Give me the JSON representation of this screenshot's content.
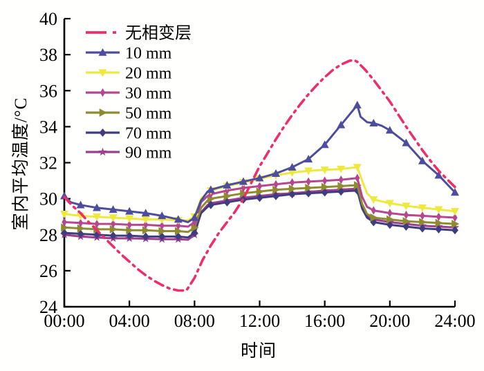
{
  "figure": {
    "kind": "scientific line chart",
    "background": "#ffffff",
    "axis_color": "#000000"
  },
  "chart_data": {
    "type": "line",
    "title": "",
    "xlabel": "时间",
    "ylabel": "室内平均温度/°C",
    "xlim": [
      0,
      24
    ],
    "ylim": [
      24,
      40
    ],
    "grid": false,
    "legend_position": "top-left",
    "x_ticks": [
      {
        "value": 0,
        "label": "00:00"
      },
      {
        "value": 4,
        "label": "04:00"
      },
      {
        "value": 8,
        "label": "08:00"
      },
      {
        "value": 12,
        "label": "12:00"
      },
      {
        "value": 16,
        "label": "16:00"
      },
      {
        "value": 20,
        "label": "20:00"
      },
      {
        "value": 24,
        "label": "24:00"
      }
    ],
    "y_ticks": [
      24,
      26,
      28,
      30,
      32,
      34,
      36,
      38,
      40
    ],
    "series": [
      {
        "label": "无相变层",
        "color": "#ED2E6B",
        "line_style": "dash-dot",
        "marker": "none",
        "points": [
          [
            0,
            30.1
          ],
          [
            0.5,
            29.6
          ],
          [
            1,
            29.2
          ],
          [
            1.5,
            28.7
          ],
          [
            2,
            28.25
          ],
          [
            2.5,
            27.8
          ],
          [
            3,
            27.35
          ],
          [
            3.5,
            26.9
          ],
          [
            4,
            26.5
          ],
          [
            4.5,
            26.1
          ],
          [
            5,
            25.75
          ],
          [
            5.5,
            25.45
          ],
          [
            6,
            25.2
          ],
          [
            6.5,
            25.0
          ],
          [
            7,
            24.9
          ],
          [
            7.5,
            24.9
          ],
          [
            8,
            25.6
          ],
          [
            8.5,
            26.6
          ],
          [
            9,
            27.4
          ],
          [
            9.5,
            28.1
          ],
          [
            10,
            28.7
          ],
          [
            10.5,
            29.3
          ],
          [
            11,
            30.0
          ],
          [
            11.5,
            30.9
          ],
          [
            12,
            31.8
          ],
          [
            12.5,
            32.55
          ],
          [
            13,
            33.3
          ],
          [
            13.5,
            34.0
          ],
          [
            14,
            34.65
          ],
          [
            14.5,
            35.25
          ],
          [
            15,
            35.8
          ],
          [
            15.5,
            36.3
          ],
          [
            16,
            36.75
          ],
          [
            16.5,
            37.15
          ],
          [
            17,
            37.45
          ],
          [
            17.5,
            37.65
          ],
          [
            17.8,
            37.7
          ],
          [
            18,
            37.6
          ],
          [
            18.5,
            37.15
          ],
          [
            19,
            36.6
          ],
          [
            19.5,
            36.0
          ],
          [
            20,
            35.4
          ],
          [
            20.5,
            34.7
          ],
          [
            21,
            34.0
          ],
          [
            21.5,
            33.35
          ],
          [
            22,
            32.7
          ],
          [
            22.5,
            32.1
          ],
          [
            23,
            31.55
          ],
          [
            23.5,
            31.1
          ],
          [
            24,
            30.65
          ]
        ]
      },
      {
        "label": "10 mm",
        "color": "#4D4C9D",
        "line_style": "solid",
        "marker": "triangle-up",
        "points": [
          [
            0,
            30.15
          ],
          [
            0.4,
            29.8
          ],
          [
            1,
            29.65
          ],
          [
            2,
            29.5
          ],
          [
            3,
            29.4
          ],
          [
            4,
            29.3
          ],
          [
            5,
            29.2
          ],
          [
            6,
            29.05
          ],
          [
            7,
            28.85
          ],
          [
            7.6,
            28.7
          ],
          [
            8,
            28.95
          ],
          [
            8.4,
            29.9
          ],
          [
            8.8,
            30.4
          ],
          [
            9,
            30.5
          ],
          [
            10,
            30.75
          ],
          [
            11,
            30.95
          ],
          [
            12,
            31.15
          ],
          [
            13,
            31.4
          ],
          [
            14,
            31.75
          ],
          [
            15,
            32.2
          ],
          [
            16,
            33.0
          ],
          [
            17,
            34.1
          ],
          [
            17.5,
            34.65
          ],
          [
            18,
            35.2
          ],
          [
            18.2,
            34.55
          ],
          [
            18.6,
            34.25
          ],
          [
            19,
            34.2
          ],
          [
            19.5,
            34.05
          ],
          [
            20,
            33.8
          ],
          [
            21,
            33.1
          ],
          [
            22,
            32.1
          ],
          [
            23,
            31.3
          ],
          [
            24,
            30.35
          ]
        ]
      },
      {
        "label": "20 mm",
        "color": "#EDE93F",
        "line_style": "solid",
        "marker": "triangle-down",
        "points": [
          [
            0,
            29.15
          ],
          [
            1,
            29.05
          ],
          [
            2,
            29.0
          ],
          [
            3,
            28.95
          ],
          [
            4,
            28.9
          ],
          [
            5,
            28.85
          ],
          [
            6,
            28.85
          ],
          [
            7,
            28.8
          ],
          [
            7.6,
            28.8
          ],
          [
            8,
            29.0
          ],
          [
            8.4,
            30.0
          ],
          [
            8.8,
            30.35
          ],
          [
            9,
            30.45
          ],
          [
            10,
            30.7
          ],
          [
            11,
            30.9
          ],
          [
            12,
            31.1
          ],
          [
            13,
            31.3
          ],
          [
            14,
            31.45
          ],
          [
            15,
            31.55
          ],
          [
            16,
            31.6
          ],
          [
            17,
            31.65
          ],
          [
            17.5,
            31.7
          ],
          [
            18,
            31.75
          ],
          [
            18.3,
            31.0
          ],
          [
            18.6,
            30.3
          ],
          [
            19,
            29.95
          ],
          [
            20,
            29.75
          ],
          [
            21,
            29.6
          ],
          [
            22,
            29.5
          ],
          [
            23,
            29.4
          ],
          [
            24,
            29.3
          ]
        ]
      },
      {
        "label": "30 mm",
        "color": "#B4478F",
        "line_style": "solid",
        "marker": "diamond-thin",
        "points": [
          [
            0,
            28.7
          ],
          [
            1,
            28.65
          ],
          [
            2,
            28.6
          ],
          [
            3,
            28.6
          ],
          [
            4,
            28.55
          ],
          [
            5,
            28.55
          ],
          [
            6,
            28.5
          ],
          [
            7,
            28.5
          ],
          [
            7.6,
            28.45
          ],
          [
            8,
            28.7
          ],
          [
            8.4,
            29.8
          ],
          [
            8.8,
            30.15
          ],
          [
            9,
            30.25
          ],
          [
            10,
            30.45
          ],
          [
            11,
            30.6
          ],
          [
            12,
            30.7
          ],
          [
            13,
            30.8
          ],
          [
            14,
            30.9
          ],
          [
            15,
            30.95
          ],
          [
            16,
            31.0
          ],
          [
            17,
            31.05
          ],
          [
            17.5,
            31.1
          ],
          [
            18,
            31.15
          ],
          [
            18.3,
            30.1
          ],
          [
            18.6,
            29.55
          ],
          [
            19,
            29.35
          ],
          [
            20,
            29.2
          ],
          [
            21,
            29.1
          ],
          [
            22,
            29.05
          ],
          [
            23,
            29.0
          ],
          [
            24,
            28.95
          ]
        ]
      },
      {
        "label": "50 mm",
        "color": "#8F8C2F",
        "line_style": "solid",
        "marker": "triangle-right",
        "points": [
          [
            0,
            28.4
          ],
          [
            1,
            28.35
          ],
          [
            2,
            28.3
          ],
          [
            3,
            28.3
          ],
          [
            4,
            28.25
          ],
          [
            5,
            28.25
          ],
          [
            6,
            28.2
          ],
          [
            7,
            28.2
          ],
          [
            7.6,
            28.15
          ],
          [
            8,
            28.4
          ],
          [
            8.4,
            29.5
          ],
          [
            8.8,
            29.9
          ],
          [
            9,
            30.0
          ],
          [
            10,
            30.15
          ],
          [
            11,
            30.3
          ],
          [
            12,
            30.4
          ],
          [
            13,
            30.5
          ],
          [
            14,
            30.55
          ],
          [
            15,
            30.6
          ],
          [
            16,
            30.65
          ],
          [
            17,
            30.7
          ],
          [
            17.5,
            30.73
          ],
          [
            18,
            30.75
          ],
          [
            18.3,
            29.7
          ],
          [
            18.6,
            29.15
          ],
          [
            19,
            28.95
          ],
          [
            20,
            28.85
          ],
          [
            21,
            28.75
          ],
          [
            22,
            28.7
          ],
          [
            23,
            28.65
          ],
          [
            24,
            28.6
          ]
        ]
      },
      {
        "label": "70 mm",
        "color": "#3F3D80",
        "line_style": "solid",
        "marker": "diamond",
        "points": [
          [
            0,
            28.1
          ],
          [
            1,
            28.05
          ],
          [
            2,
            28.0
          ],
          [
            3,
            27.95
          ],
          [
            4,
            27.95
          ],
          [
            5,
            27.9
          ],
          [
            6,
            27.9
          ],
          [
            7,
            27.9
          ],
          [
            7.6,
            27.85
          ],
          [
            8,
            28.1
          ],
          [
            8.4,
            29.2
          ],
          [
            8.8,
            29.55
          ],
          [
            9,
            29.65
          ],
          [
            10,
            29.8
          ],
          [
            11,
            29.95
          ],
          [
            12,
            30.05
          ],
          [
            13,
            30.15
          ],
          [
            14,
            30.25
          ],
          [
            15,
            30.3
          ],
          [
            16,
            30.35
          ],
          [
            17,
            30.4
          ],
          [
            17.5,
            30.43
          ],
          [
            18,
            30.45
          ],
          [
            18.3,
            29.45
          ],
          [
            18.6,
            28.95
          ],
          [
            19,
            28.7
          ],
          [
            20,
            28.55
          ],
          [
            21,
            28.45
          ],
          [
            22,
            28.35
          ],
          [
            23,
            28.3
          ],
          [
            24,
            28.25
          ]
        ]
      },
      {
        "label": "90 mm",
        "color": "#9C3F8E",
        "line_style": "solid",
        "marker": "star",
        "points": [
          [
            0,
            28.0
          ],
          [
            1,
            27.9
          ],
          [
            2,
            27.85
          ],
          [
            3,
            27.8
          ],
          [
            4,
            27.8
          ],
          [
            5,
            27.78
          ],
          [
            6,
            27.75
          ],
          [
            7,
            27.75
          ],
          [
            7.6,
            27.72
          ],
          [
            8,
            28.0
          ],
          [
            8.4,
            29.25
          ],
          [
            8.8,
            29.65
          ],
          [
            9,
            29.75
          ],
          [
            10,
            29.9
          ],
          [
            11,
            30.05
          ],
          [
            12,
            30.15
          ],
          [
            13,
            30.25
          ],
          [
            14,
            30.3
          ],
          [
            15,
            30.38
          ],
          [
            16,
            30.45
          ],
          [
            17,
            30.5
          ],
          [
            17.5,
            30.53
          ],
          [
            18,
            30.55
          ],
          [
            18.3,
            29.55
          ],
          [
            18.6,
            29.05
          ],
          [
            19,
            28.85
          ],
          [
            20,
            28.7
          ],
          [
            21,
            28.6
          ],
          [
            22,
            28.5
          ],
          [
            23,
            28.45
          ],
          [
            24,
            28.4
          ]
        ]
      }
    ]
  }
}
